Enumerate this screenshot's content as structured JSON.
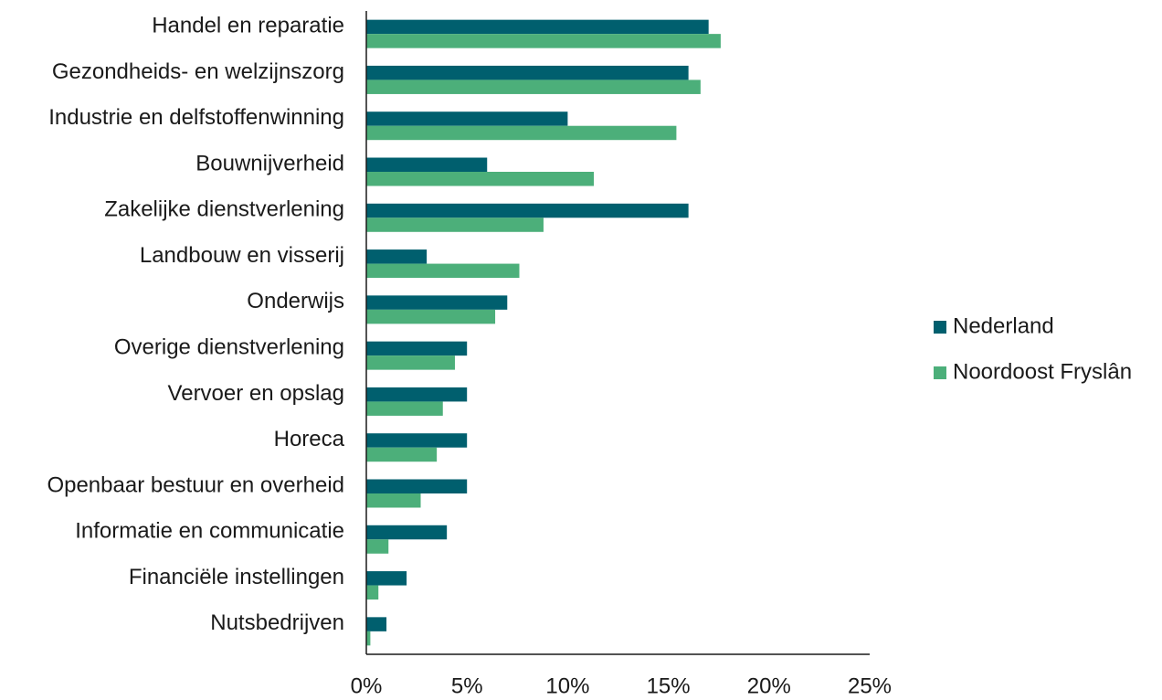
{
  "chart_data": {
    "type": "bar",
    "orientation": "horizontal",
    "categories": [
      "Handel en reparatie",
      "Gezondheids- en welzijnszorg",
      "Industrie en delfstoffenwinning",
      "Bouwnijverheid",
      "Zakelijke dienstverlening",
      "Landbouw en visserij",
      "Onderwijs",
      "Overige dienstverlening",
      "Vervoer en opslag",
      "Horeca",
      "Openbaar bestuur en overheid",
      "Informatie en communicatie",
      "Financiële instellingen",
      "Nutsbedrijven"
    ],
    "series": [
      {
        "name": "Nederland",
        "color": "#005f6e",
        "values": [
          17,
          16,
          10,
          6,
          16,
          3,
          7,
          5,
          5,
          5,
          5,
          4,
          2,
          1
        ]
      },
      {
        "name": "Noordoost Fryslân",
        "color": "#4caf7a",
        "values": [
          17.6,
          16.6,
          15.4,
          11.3,
          8.8,
          7.6,
          6.4,
          4.4,
          3.8,
          3.5,
          2.7,
          1.1,
          0.6,
          0.2
        ]
      }
    ],
    "xlim": [
      0,
      25
    ],
    "xticks": [
      0,
      5,
      10,
      15,
      20,
      25
    ],
    "tick_suffix": "%",
    "grid": false,
    "legend": "right"
  }
}
